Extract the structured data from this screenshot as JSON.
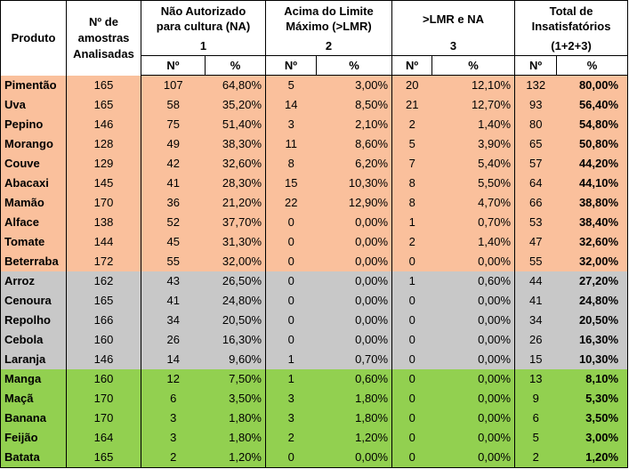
{
  "colors": {
    "group_orange": "#FAC09C",
    "group_gray": "#C8C8C8",
    "group_green": "#92D050",
    "header_bg": "#FFFFFF"
  },
  "header": {
    "produto": "Produto",
    "amostras": [
      "Nº de",
      "amostras",
      "Analisadas"
    ],
    "g1_title": [
      "Não Autorizado",
      "para cultura (NA)"
    ],
    "g1_num": "1",
    "g2_title": [
      "Acima do Limite",
      "Máximo (>LMR)"
    ],
    "g2_num": "2",
    "g3_title": ">LMR e NA",
    "g3_num": "3",
    "g4_title": [
      "Total de",
      "Insatisfatórios"
    ],
    "g4_num": "(1+2+3)",
    "n_label": "Nº",
    "pct_label": "%"
  },
  "rows": [
    {
      "group": "orange",
      "name": "Pimentão",
      "amostras": "165",
      "na_n": "107",
      "na_p": "64,80%",
      "lmr_n": "5",
      "lmr_p": "3,00%",
      "both_n": "20",
      "both_p": "12,10%",
      "tot_n": "132",
      "tot_p": "80,00%"
    },
    {
      "group": "orange",
      "name": "Uva",
      "amostras": "165",
      "na_n": "58",
      "na_p": "35,20%",
      "lmr_n": "14",
      "lmr_p": "8,50%",
      "both_n": "21",
      "both_p": "12,70%",
      "tot_n": "93",
      "tot_p": "56,40%"
    },
    {
      "group": "orange",
      "name": "Pepino",
      "amostras": "146",
      "na_n": "75",
      "na_p": "51,40%",
      "lmr_n": "3",
      "lmr_p": "2,10%",
      "both_n": "2",
      "both_p": "1,40%",
      "tot_n": "80",
      "tot_p": "54,80%"
    },
    {
      "group": "orange",
      "name": "Morango",
      "amostras": "128",
      "na_n": "49",
      "na_p": "38,30%",
      "lmr_n": "11",
      "lmr_p": "8,60%",
      "both_n": "5",
      "both_p": "3,90%",
      "tot_n": "65",
      "tot_p": "50,80%"
    },
    {
      "group": "orange",
      "name": "Couve",
      "amostras": "129",
      "na_n": "42",
      "na_p": "32,60%",
      "lmr_n": "8",
      "lmr_p": "6,20%",
      "both_n": "7",
      "both_p": "5,40%",
      "tot_n": "57",
      "tot_p": "44,20%"
    },
    {
      "group": "orange",
      "name": "Abacaxi",
      "amostras": "145",
      "na_n": "41",
      "na_p": "28,30%",
      "lmr_n": "15",
      "lmr_p": "10,30%",
      "both_n": "8",
      "both_p": "5,50%",
      "tot_n": "64",
      "tot_p": "44,10%"
    },
    {
      "group": "orange",
      "name": "Mamão",
      "amostras": "170",
      "na_n": "36",
      "na_p": "21,20%",
      "lmr_n": "22",
      "lmr_p": "12,90%",
      "both_n": "8",
      "both_p": "4,70%",
      "tot_n": "66",
      "tot_p": "38,80%"
    },
    {
      "group": "orange",
      "name": "Alface",
      "amostras": "138",
      "na_n": "52",
      "na_p": "37,70%",
      "lmr_n": "0",
      "lmr_p": "0,00%",
      "both_n": "1",
      "both_p": "0,70%",
      "tot_n": "53",
      "tot_p": "38,40%"
    },
    {
      "group": "orange",
      "name": "Tomate",
      "amostras": "144",
      "na_n": "45",
      "na_p": "31,30%",
      "lmr_n": "0",
      "lmr_p": "0,00%",
      "both_n": "2",
      "both_p": "1,40%",
      "tot_n": "47",
      "tot_p": "32,60%"
    },
    {
      "group": "orange",
      "name": "Beterraba",
      "amostras": "172",
      "na_n": "55",
      "na_p": "32,00%",
      "lmr_n": "0",
      "lmr_p": "0,00%",
      "both_n": "0",
      "both_p": "0,00%",
      "tot_n": "55",
      "tot_p": "32,00%"
    },
    {
      "group": "gray",
      "name": "Arroz",
      "amostras": "162",
      "na_n": "43",
      "na_p": "26,50%",
      "lmr_n": "0",
      "lmr_p": "0,00%",
      "both_n": "1",
      "both_p": "0,60%",
      "tot_n": "44",
      "tot_p": "27,20%"
    },
    {
      "group": "gray",
      "name": "Cenoura",
      "amostras": "165",
      "na_n": "41",
      "na_p": "24,80%",
      "lmr_n": "0",
      "lmr_p": "0,00%",
      "both_n": "0",
      "both_p": "0,00%",
      "tot_n": "41",
      "tot_p": "24,80%"
    },
    {
      "group": "gray",
      "name": "Repolho",
      "amostras": "166",
      "na_n": "34",
      "na_p": "20,50%",
      "lmr_n": "0",
      "lmr_p": "0,00%",
      "both_n": "0",
      "both_p": "0,00%",
      "tot_n": "34",
      "tot_p": "20,50%"
    },
    {
      "group": "gray",
      "name": "Cebola",
      "amostras": "160",
      "na_n": "26",
      "na_p": "16,30%",
      "lmr_n": "0",
      "lmr_p": "0,00%",
      "both_n": "0",
      "both_p": "0,00%",
      "tot_n": "26",
      "tot_p": "16,30%"
    },
    {
      "group": "gray",
      "name": "Laranja",
      "amostras": "146",
      "na_n": "14",
      "na_p": "9,60%",
      "lmr_n": "1",
      "lmr_p": "0,70%",
      "both_n": "0",
      "both_p": "0,00%",
      "tot_n": "15",
      "tot_p": "10,30%"
    },
    {
      "group": "green",
      "name": "Manga",
      "amostras": "160",
      "na_n": "12",
      "na_p": "7,50%",
      "lmr_n": "1",
      "lmr_p": "0,60%",
      "both_n": "0",
      "both_p": "0,00%",
      "tot_n": "13",
      "tot_p": "8,10%"
    },
    {
      "group": "green",
      "name": "Maçã",
      "amostras": "170",
      "na_n": "6",
      "na_p": "3,50%",
      "lmr_n": "3",
      "lmr_p": "1,80%",
      "both_n": "0",
      "both_p": "0,00%",
      "tot_n": "9",
      "tot_p": "5,30%"
    },
    {
      "group": "green",
      "name": "Banana",
      "amostras": "170",
      "na_n": "3",
      "na_p": "1,80%",
      "lmr_n": "3",
      "lmr_p": "1,80%",
      "both_n": "0",
      "both_p": "0,00%",
      "tot_n": "6",
      "tot_p": "3,50%"
    },
    {
      "group": "green",
      "name": "Feijão",
      "amostras": "164",
      "na_n": "3",
      "na_p": "1,80%",
      "lmr_n": "2",
      "lmr_p": "1,20%",
      "both_n": "0",
      "both_p": "0,00%",
      "tot_n": "5",
      "tot_p": "3,00%"
    },
    {
      "group": "green",
      "name": "Batata",
      "amostras": "165",
      "na_n": "2",
      "na_p": "1,20%",
      "lmr_n": "0",
      "lmr_p": "0,00%",
      "both_n": "0",
      "both_p": "0,00%",
      "tot_n": "2",
      "tot_p": "1,20%"
    }
  ]
}
